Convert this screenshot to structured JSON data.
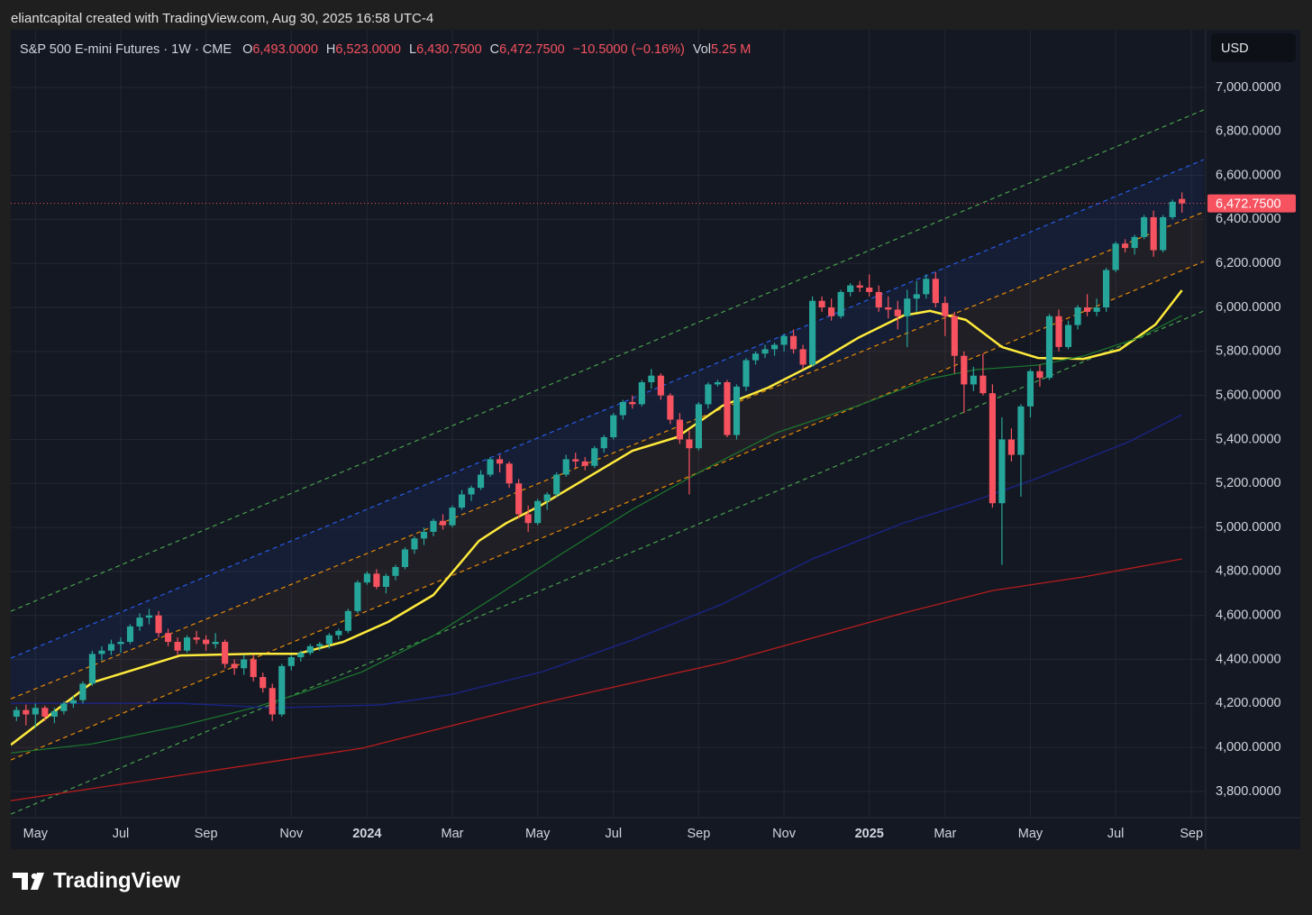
{
  "header": {
    "credit": "eliantcapital created with TradingView.com, Aug 30, 2025 16:58 UTC-4"
  },
  "footer": {
    "logo_text": "TradingView"
  },
  "chart_data": {
    "type": "candlestick",
    "symbol": "S&P 500 E-mini Futures · 1W · CME",
    "ohlc_legend": [
      {
        "key": "O",
        "value": "6,493.0000"
      },
      {
        "key": "H",
        "value": "6,523.0000"
      },
      {
        "key": "L",
        "value": "6,430.7500"
      },
      {
        "key": "C",
        "value": "6,472.7500"
      }
    ],
    "change": "−10.5000 (−0.16%)",
    "volume_key": "Vol",
    "volume": "5.25 M",
    "currency": "USD",
    "up_color": "#26a69a",
    "down_color": "#f7525f",
    "grid": true,
    "xlim": [
      -0.6,
      125.5
    ],
    "xticks": [
      {
        "value": 2,
        "label": "May"
      },
      {
        "value": 11,
        "label": "Jul"
      },
      {
        "value": 20,
        "label": "Sep"
      },
      {
        "value": 29,
        "label": "Nov"
      },
      {
        "value": 37,
        "label": "2024"
      },
      {
        "value": 46,
        "label": "Mar"
      },
      {
        "value": 55,
        "label": "May"
      },
      {
        "value": 63,
        "label": "Jul"
      },
      {
        "value": 72,
        "label": "Sep"
      },
      {
        "value": 81,
        "label": "Nov"
      },
      {
        "value": 90,
        "label": "2025"
      },
      {
        "value": 98,
        "label": "Mar"
      },
      {
        "value": 107,
        "label": "May"
      },
      {
        "value": 116,
        "label": "Jul"
      },
      {
        "value": 124,
        "label": "Sep"
      }
    ],
    "ylim": [
      3681,
      7262
    ],
    "yticks": [
      {
        "value": 3800,
        "label": "3,800.0000"
      },
      {
        "value": 4000,
        "label": "4,000.0000"
      },
      {
        "value": 4200,
        "label": "4,200.0000"
      },
      {
        "value": 4400,
        "label": "4,400.0000"
      },
      {
        "value": 4600,
        "label": "4,600.0000"
      },
      {
        "value": 4800,
        "label": "4,800.0000"
      },
      {
        "value": 5000,
        "label": "5,000.0000"
      },
      {
        "value": 5200,
        "label": "5,200.0000"
      },
      {
        "value": 5400,
        "label": "5,400.0000"
      },
      {
        "value": 5600,
        "label": "5,600.0000"
      },
      {
        "value": 5800,
        "label": "5,800.0000"
      },
      {
        "value": 6000,
        "label": "6,000.0000"
      },
      {
        "value": 6200,
        "label": "6,200.0000"
      },
      {
        "value": 6400,
        "label": "6,400.0000"
      },
      {
        "value": 6600,
        "label": "6,600.0000"
      },
      {
        "value": 6800,
        "label": "6,800.0000"
      },
      {
        "value": 7000,
        "label": "7,000.0000"
      }
    ],
    "last_price": {
      "value": 6472.75,
      "label": "6,472.7500",
      "color": "#f7525f"
    },
    "ohlc": [
      [
        4140,
        4185,
        4120,
        4170
      ],
      [
        4170,
        4195,
        4100,
        4150
      ],
      [
        4150,
        4200,
        4090,
        4180
      ],
      [
        4180,
        4190,
        4120,
        4140
      ],
      [
        4140,
        4180,
        4110,
        4165
      ],
      [
        4165,
        4210,
        4150,
        4200
      ],
      [
        4200,
        4235,
        4180,
        4215
      ],
      [
        4215,
        4300,
        4200,
        4290
      ],
      [
        4290,
        4440,
        4280,
        4425
      ],
      [
        4425,
        4460,
        4395,
        4440
      ],
      [
        4440,
        4490,
        4420,
        4470
      ],
      [
        4470,
        4500,
        4430,
        4480
      ],
      [
        4480,
        4560,
        4470,
        4550
      ],
      [
        4550,
        4610,
        4530,
        4590
      ],
      [
        4590,
        4630,
        4560,
        4600
      ],
      [
        4600,
        4620,
        4500,
        4520
      ],
      [
        4520,
        4540,
        4460,
        4480
      ],
      [
        4480,
        4500,
        4420,
        4440
      ],
      [
        4440,
        4510,
        4430,
        4500
      ],
      [
        4500,
        4530,
        4470,
        4490
      ],
      [
        4490,
        4510,
        4440,
        4470
      ],
      [
        4470,
        4520,
        4450,
        4480
      ],
      [
        4480,
        4490,
        4360,
        4380
      ],
      [
        4380,
        4400,
        4330,
        4360
      ],
      [
        4360,
        4420,
        4330,
        4400
      ],
      [
        4400,
        4420,
        4300,
        4320
      ],
      [
        4320,
        4340,
        4250,
        4270
      ],
      [
        4270,
        4290,
        4120,
        4150
      ],
      [
        4150,
        4380,
        4140,
        4370
      ],
      [
        4370,
        4420,
        4350,
        4410
      ],
      [
        4410,
        4440,
        4390,
        4430
      ],
      [
        4430,
        4470,
        4420,
        4460
      ],
      [
        4460,
        4480,
        4440,
        4470
      ],
      [
        4470,
        4520,
        4450,
        4510
      ],
      [
        4510,
        4540,
        4490,
        4530
      ],
      [
        4530,
        4630,
        4520,
        4620
      ],
      [
        4620,
        4760,
        4610,
        4750
      ],
      [
        4750,
        4800,
        4740,
        4790
      ],
      [
        4790,
        4810,
        4720,
        4730
      ],
      [
        4730,
        4790,
        4700,
        4780
      ],
      [
        4780,
        4830,
        4760,
        4820
      ],
      [
        4820,
        4910,
        4810,
        4900
      ],
      [
        4900,
        4960,
        4880,
        4950
      ],
      [
        4950,
        5000,
        4920,
        4980
      ],
      [
        4980,
        5040,
        4960,
        5030
      ],
      [
        5030,
        5060,
        4990,
        5010
      ],
      [
        5010,
        5100,
        5000,
        5090
      ],
      [
        5090,
        5170,
        5080,
        5150
      ],
      [
        5150,
        5190,
        5120,
        5180
      ],
      [
        5180,
        5260,
        5170,
        5240
      ],
      [
        5240,
        5320,
        5230,
        5310
      ],
      [
        5310,
        5330,
        5250,
        5290
      ],
      [
        5290,
        5300,
        5180,
        5200
      ],
      [
        5200,
        5220,
        5040,
        5060
      ],
      [
        5060,
        5100,
        4980,
        5020
      ],
      [
        5020,
        5130,
        5010,
        5120
      ],
      [
        5120,
        5160,
        5080,
        5150
      ],
      [
        5150,
        5250,
        5140,
        5240
      ],
      [
        5240,
        5330,
        5230,
        5310
      ],
      [
        5310,
        5340,
        5270,
        5300
      ],
      [
        5300,
        5320,
        5260,
        5280
      ],
      [
        5280,
        5370,
        5270,
        5360
      ],
      [
        5360,
        5420,
        5340,
        5410
      ],
      [
        5410,
        5520,
        5400,
        5510
      ],
      [
        5510,
        5580,
        5490,
        5570
      ],
      [
        5570,
        5600,
        5540,
        5560
      ],
      [
        5560,
        5670,
        5550,
        5660
      ],
      [
        5660,
        5720,
        5630,
        5690
      ],
      [
        5690,
        5700,
        5580,
        5600
      ],
      [
        5600,
        5610,
        5470,
        5490
      ],
      [
        5490,
        5520,
        5380,
        5400
      ],
      [
        5400,
        5440,
        5150,
        5360
      ],
      [
        5360,
        5570,
        5350,
        5560
      ],
      [
        5560,
        5660,
        5540,
        5650
      ],
      [
        5650,
        5670,
        5640,
        5660
      ],
      [
        5660,
        5670,
        5410,
        5420
      ],
      [
        5420,
        5650,
        5400,
        5640
      ],
      [
        5640,
        5770,
        5620,
        5760
      ],
      [
        5760,
        5800,
        5740,
        5790
      ],
      [
        5790,
        5830,
        5770,
        5810
      ],
      [
        5810,
        5840,
        5780,
        5830
      ],
      [
        5830,
        5880,
        5800,
        5870
      ],
      [
        5870,
        5900,
        5790,
        5810
      ],
      [
        5810,
        5830,
        5720,
        5740
      ],
      [
        5740,
        6050,
        5730,
        6030
      ],
      [
        6030,
        6050,
        5980,
        6000
      ],
      [
        6000,
        6040,
        5940,
        5960
      ],
      [
        5960,
        6080,
        5950,
        6070
      ],
      [
        6070,
        6110,
        6050,
        6100
      ],
      [
        6100,
        6120,
        6070,
        6090
      ],
      [
        6090,
        6150,
        6050,
        6070
      ],
      [
        6070,
        6100,
        5980,
        6000
      ],
      [
        6000,
        6050,
        5950,
        5990
      ],
      [
        5990,
        6030,
        5900,
        5960
      ],
      [
        5960,
        6080,
        5820,
        6040
      ],
      [
        6040,
        6120,
        5980,
        6060
      ],
      [
        6060,
        6150,
        6040,
        6130
      ],
      [
        6130,
        6160,
        6000,
        6020
      ],
      [
        6020,
        6050,
        5870,
        5960
      ],
      [
        5960,
        5980,
        5700,
        5780
      ],
      [
        5780,
        5800,
        5520,
        5650
      ],
      [
        5650,
        5730,
        5620,
        5690
      ],
      [
        5690,
        5790,
        5600,
        5610
      ],
      [
        5610,
        5650,
        5090,
        5110
      ],
      [
        5110,
        5500,
        4830,
        5400
      ],
      [
        5400,
        5450,
        5300,
        5330
      ],
      [
        5330,
        5560,
        5140,
        5550
      ],
      [
        5550,
        5720,
        5500,
        5710
      ],
      [
        5710,
        5740,
        5640,
        5680
      ],
      [
        5680,
        5970,
        5670,
        5960
      ],
      [
        5960,
        5990,
        5800,
        5820
      ],
      [
        5820,
        5940,
        5810,
        5920
      ],
      [
        5920,
        6010,
        5900,
        6000
      ],
      [
        6000,
        6060,
        5960,
        5980
      ],
      [
        5980,
        6040,
        5960,
        6000
      ],
      [
        6000,
        6180,
        5980,
        6170
      ],
      [
        6170,
        6300,
        6160,
        6290
      ],
      [
        6290,
        6310,
        6250,
        6270
      ],
      [
        6270,
        6330,
        6240,
        6320
      ],
      [
        6320,
        6420,
        6310,
        6410
      ],
      [
        6410,
        6440,
        6230,
        6260
      ],
      [
        6260,
        6420,
        6250,
        6410
      ],
      [
        6410,
        6490,
        6400,
        6480
      ],
      [
        6493,
        6523,
        6430.75,
        6472.75
      ]
    ],
    "channels": [
      {
        "color": "#4caf50",
        "x": [
          -0.6,
          125.3
        ],
        "values": [
          4619,
          6898
        ]
      },
      {
        "color": "#2962ff",
        "x": [
          -0.6,
          125.3
        ],
        "values": [
          4406,
          6672
        ]
      },
      {
        "color": "#ff9800",
        "x": [
          -0.6,
          125.3
        ],
        "values": [
          4221,
          6434
        ]
      },
      {
        "color": "#ff9800",
        "x": [
          -0.6,
          125.3
        ],
        "values": [
          3943,
          6209
        ]
      },
      {
        "color": "#4caf50",
        "x": [
          -0.6,
          125.3
        ],
        "values": [
          3697,
          5984
        ]
      }
    ],
    "moving_averages": [
      {
        "color": "#ffeb3b",
        "width": 2.5,
        "x": [
          -0.6,
          8,
          17.3,
          25,
          29.7,
          34.5,
          39.2,
          44,
          48.8,
          51.7,
          55.4,
          60.2,
          65,
          69.7,
          74.5,
          79.3,
          84,
          88.8,
          93.6,
          96.4,
          100.2,
          104,
          107.8,
          112.6,
          116.4,
          120.2,
          123
        ],
        "values": [
          4012,
          4295,
          4418,
          4426,
          4426,
          4480,
          4570,
          4693,
          4939,
          5020,
          5102,
          5225,
          5348,
          5410,
          5553,
          5635,
          5738,
          5861,
          5963,
          5984,
          5943,
          5820,
          5770,
          5766,
          5807,
          5922,
          6078
        ]
      },
      {
        "color": "#1b7a2e",
        "width": 1.2,
        "x": [
          -0.6,
          8,
          17.3,
          25,
          29.7,
          36.5,
          44,
          50.8,
          57.4,
          65,
          72.7,
          80.2,
          88.8,
          96.4,
          101.2,
          107.8,
          112.6,
          118.4,
          123
        ],
        "values": [
          3975,
          4016,
          4098,
          4180,
          4242,
          4344,
          4508,
          4693,
          4877,
          5082,
          5266,
          5430,
          5553,
          5676,
          5717,
          5738,
          5779,
          5861,
          5963
        ]
      },
      {
        "color": "#1a237e",
        "width": 1.5,
        "x": [
          -0.6,
          17.3,
          27,
          38.4,
          46,
          55.5,
          65,
          74.5,
          84,
          93.6,
          101.2,
          107.8,
          117.4,
          123
        ],
        "values": [
          4201,
          4201,
          4180,
          4193,
          4242,
          4344,
          4488,
          4652,
          4857,
          5020,
          5123,
          5225,
          5389,
          5512
        ]
      },
      {
        "color": "#b71c1c",
        "width": 1.3,
        "x": [
          -0.6,
          17.3,
          36.4,
          55.4,
          74.5,
          93.6,
          103,
          112.6,
          123
        ],
        "values": [
          3758,
          3873,
          3996,
          4201,
          4385,
          4611,
          4713,
          4775,
          4857
        ]
      }
    ]
  }
}
